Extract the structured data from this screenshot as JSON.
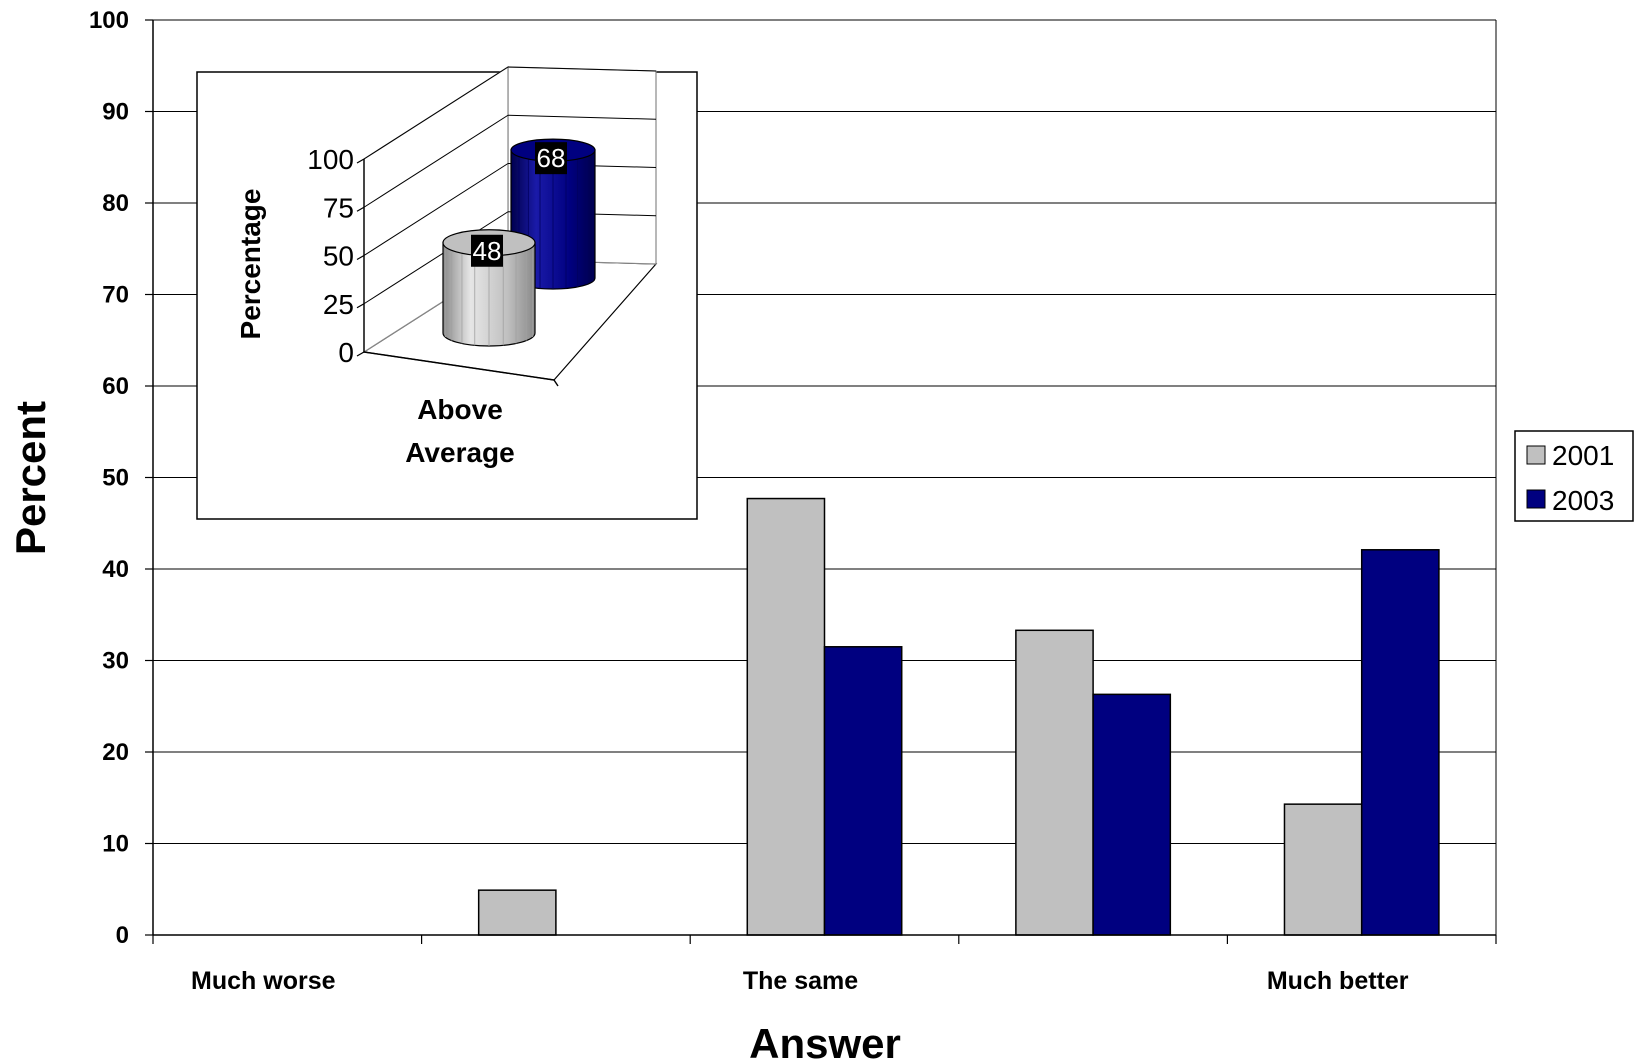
{
  "chart_data": [
    {
      "type": "bar",
      "categories": [
        "Much worse",
        "",
        "The same",
        "",
        "Much better"
      ],
      "series": [
        {
          "name": "2001",
          "values": [
            0,
            4.9,
            47.7,
            33.3,
            14.3
          ],
          "color": "#C0C0C0"
        },
        {
          "name": "2003",
          "values": [
            0,
            0,
            31.5,
            26.3,
            42.1
          ],
          "color": "#000080"
        }
      ],
      "xlabel": "Answer",
      "ylabel": "Percent",
      "ylim": [
        0,
        100
      ],
      "yticks": [
        "0",
        "10",
        "20",
        "30",
        "40",
        "50",
        "60",
        "70",
        "80",
        "90",
        "100"
      ],
      "grid": true,
      "legend": "right"
    },
    {
      "type": "bar",
      "style": "3d-cylinder",
      "categories": [
        "Above Average"
      ],
      "series": [
        {
          "name": "2001",
          "values": [
            48
          ],
          "color": "#C0C0C0"
        },
        {
          "name": "2003",
          "values": [
            68
          ],
          "color": "#000080"
        }
      ],
      "data_labels": [
        "48",
        "68"
      ],
      "ylabel": "Percentage",
      "ylim": [
        0,
        100
      ],
      "yticks": [
        "0",
        "25",
        "50",
        "75",
        "100"
      ],
      "grid": true
    }
  ]
}
